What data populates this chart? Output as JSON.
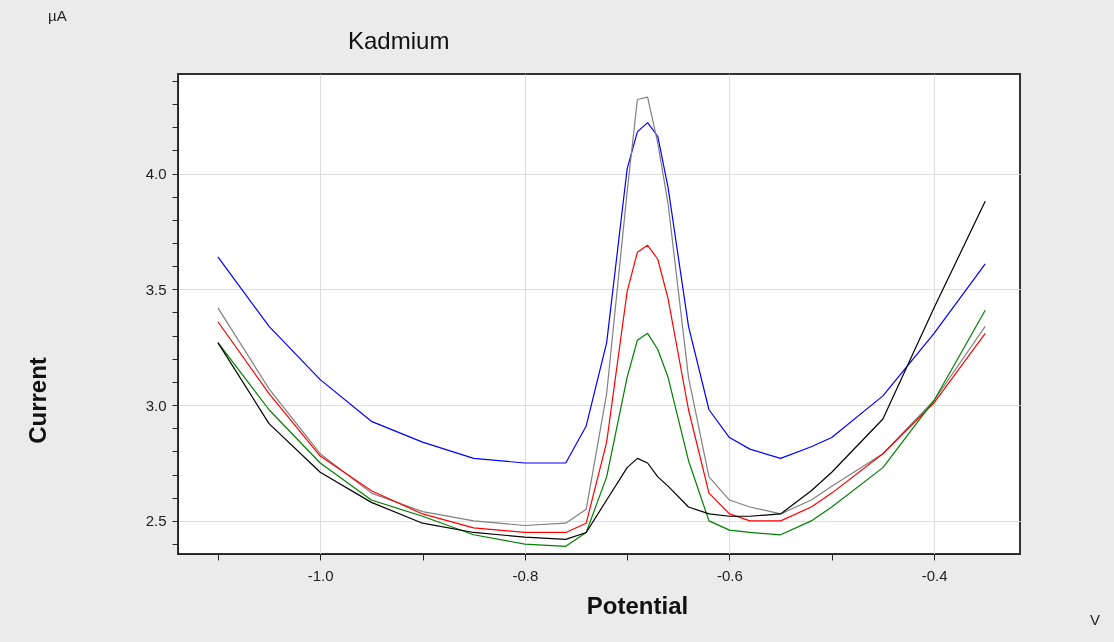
{
  "chart_data": {
    "type": "line",
    "title": "Kadmium",
    "xlabel": "Potential",
    "ylabel": "Current",
    "annotations": [
      "µA",
      "V"
    ],
    "x": [
      -1.1,
      -1.05,
      -1.0,
      -0.95,
      -0.9,
      -0.85,
      -0.8,
      -0.76,
      -0.74,
      -0.72,
      -0.7,
      -0.69,
      -0.68,
      -0.67,
      -0.66,
      -0.64,
      -0.62,
      -0.6,
      -0.58,
      -0.55,
      -0.52,
      -0.5,
      -0.45,
      -0.4,
      -0.35
    ],
    "series": [
      {
        "color": "#0000ff",
        "values": [
          3.64,
          3.34,
          3.11,
          2.93,
          2.84,
          2.77,
          2.75,
          2.75,
          2.91,
          3.27,
          4.02,
          4.18,
          4.22,
          4.16,
          3.94,
          3.34,
          2.98,
          2.86,
          2.81,
          2.77,
          2.82,
          2.86,
          3.04,
          3.31,
          3.61
        ]
      },
      {
        "color": "#808080",
        "values": [
          3.42,
          3.07,
          2.79,
          2.62,
          2.54,
          2.5,
          2.48,
          2.49,
          2.55,
          3.05,
          3.92,
          4.32,
          4.33,
          4.13,
          3.87,
          3.12,
          2.69,
          2.59,
          2.56,
          2.53,
          2.59,
          2.65,
          2.79,
          3.02,
          3.34
        ]
      },
      {
        "color": "#ff0000",
        "values": [
          3.36,
          3.05,
          2.78,
          2.63,
          2.53,
          2.47,
          2.45,
          2.45,
          2.49,
          2.84,
          3.49,
          3.66,
          3.69,
          3.63,
          3.46,
          2.98,
          2.62,
          2.53,
          2.5,
          2.5,
          2.56,
          2.62,
          2.79,
          3.01,
          3.31
        ]
      },
      {
        "color": "#008000",
        "values": [
          3.27,
          2.98,
          2.75,
          2.59,
          2.52,
          2.44,
          2.4,
          2.39,
          2.45,
          2.69,
          3.12,
          3.28,
          3.31,
          3.24,
          3.12,
          2.76,
          2.5,
          2.46,
          2.45,
          2.44,
          2.5,
          2.56,
          2.73,
          3.02,
          3.41
        ]
      },
      {
        "color": "#000000",
        "values": [
          3.27,
          2.92,
          2.71,
          2.58,
          2.49,
          2.45,
          2.43,
          2.42,
          2.45,
          2.59,
          2.73,
          2.77,
          2.75,
          2.69,
          2.65,
          2.56,
          2.53,
          2.52,
          2.52,
          2.53,
          2.63,
          2.71,
          2.94,
          3.42,
          3.88
        ]
      }
    ],
    "xlim": [
      -1.139,
      -0.316
    ],
    "ylim": [
      2.357,
      4.43
    ],
    "xticks": [
      {
        "value": -1.1,
        "label": null
      },
      {
        "value": -1.0,
        "label": "-1.0"
      },
      {
        "value": -0.9,
        "label": null
      },
      {
        "value": -0.8,
        "label": "-0.8"
      },
      {
        "value": -0.7,
        "label": null
      },
      {
        "value": -0.6,
        "label": "-0.6"
      },
      {
        "value": -0.5,
        "label": null
      },
      {
        "value": -0.4,
        "label": "-0.4"
      }
    ],
    "yticks": [
      {
        "value": 2.4,
        "label": null
      },
      2.5,
      {
        "value": 2.6,
        "label": null
      },
      {
        "value": 2.7,
        "label": null
      },
      {
        "value": 2.8,
        "label": null
      },
      {
        "value": 2.9,
        "label": null
      },
      {
        "value": 3.0,
        "label": "3.0"
      },
      {
        "value": 3.1,
        "label": null
      },
      {
        "value": 3.2,
        "label": null
      },
      {
        "value": 3.3,
        "label": null
      },
      {
        "value": 3.4,
        "label": null
      },
      3.5,
      {
        "value": 3.6,
        "label": null
      },
      {
        "value": 3.7,
        "label": null
      },
      {
        "value": 3.8,
        "label": null
      },
      {
        "value": 3.9,
        "label": null
      },
      {
        "value": 4.0,
        "label": "4.0"
      },
      {
        "value": 4.1,
        "label": null
      },
      {
        "value": 4.2,
        "label": null
      },
      {
        "value": 4.3,
        "label": null
      },
      {
        "value": 4.4,
        "label": null
      }
    ],
    "grid": true,
    "legend": false,
    "marker": "none",
    "line_style": "solid"
  }
}
